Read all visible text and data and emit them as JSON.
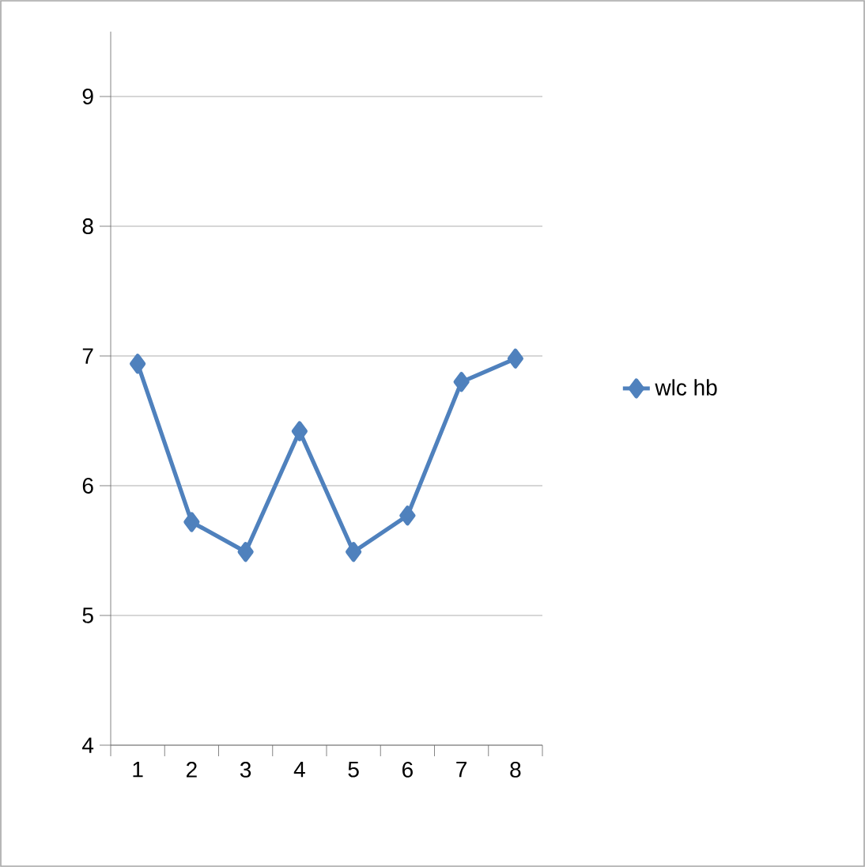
{
  "chart_data": {
    "type": "line",
    "categories": [
      "1",
      "2",
      "3",
      "4",
      "5",
      "6",
      "7",
      "8"
    ],
    "series": [
      {
        "name": "wlc hb",
        "color": "#4f81bd",
        "values": [
          6.94,
          5.72,
          5.49,
          6.42,
          5.49,
          5.77,
          6.8,
          6.98
        ]
      }
    ],
    "ylim": [
      4,
      9.5
    ],
    "yticks": [
      4,
      5,
      6,
      7,
      8,
      9
    ],
    "grid": "y",
    "legend": "right",
    "marker": "diamond",
    "line_style": "solid"
  }
}
